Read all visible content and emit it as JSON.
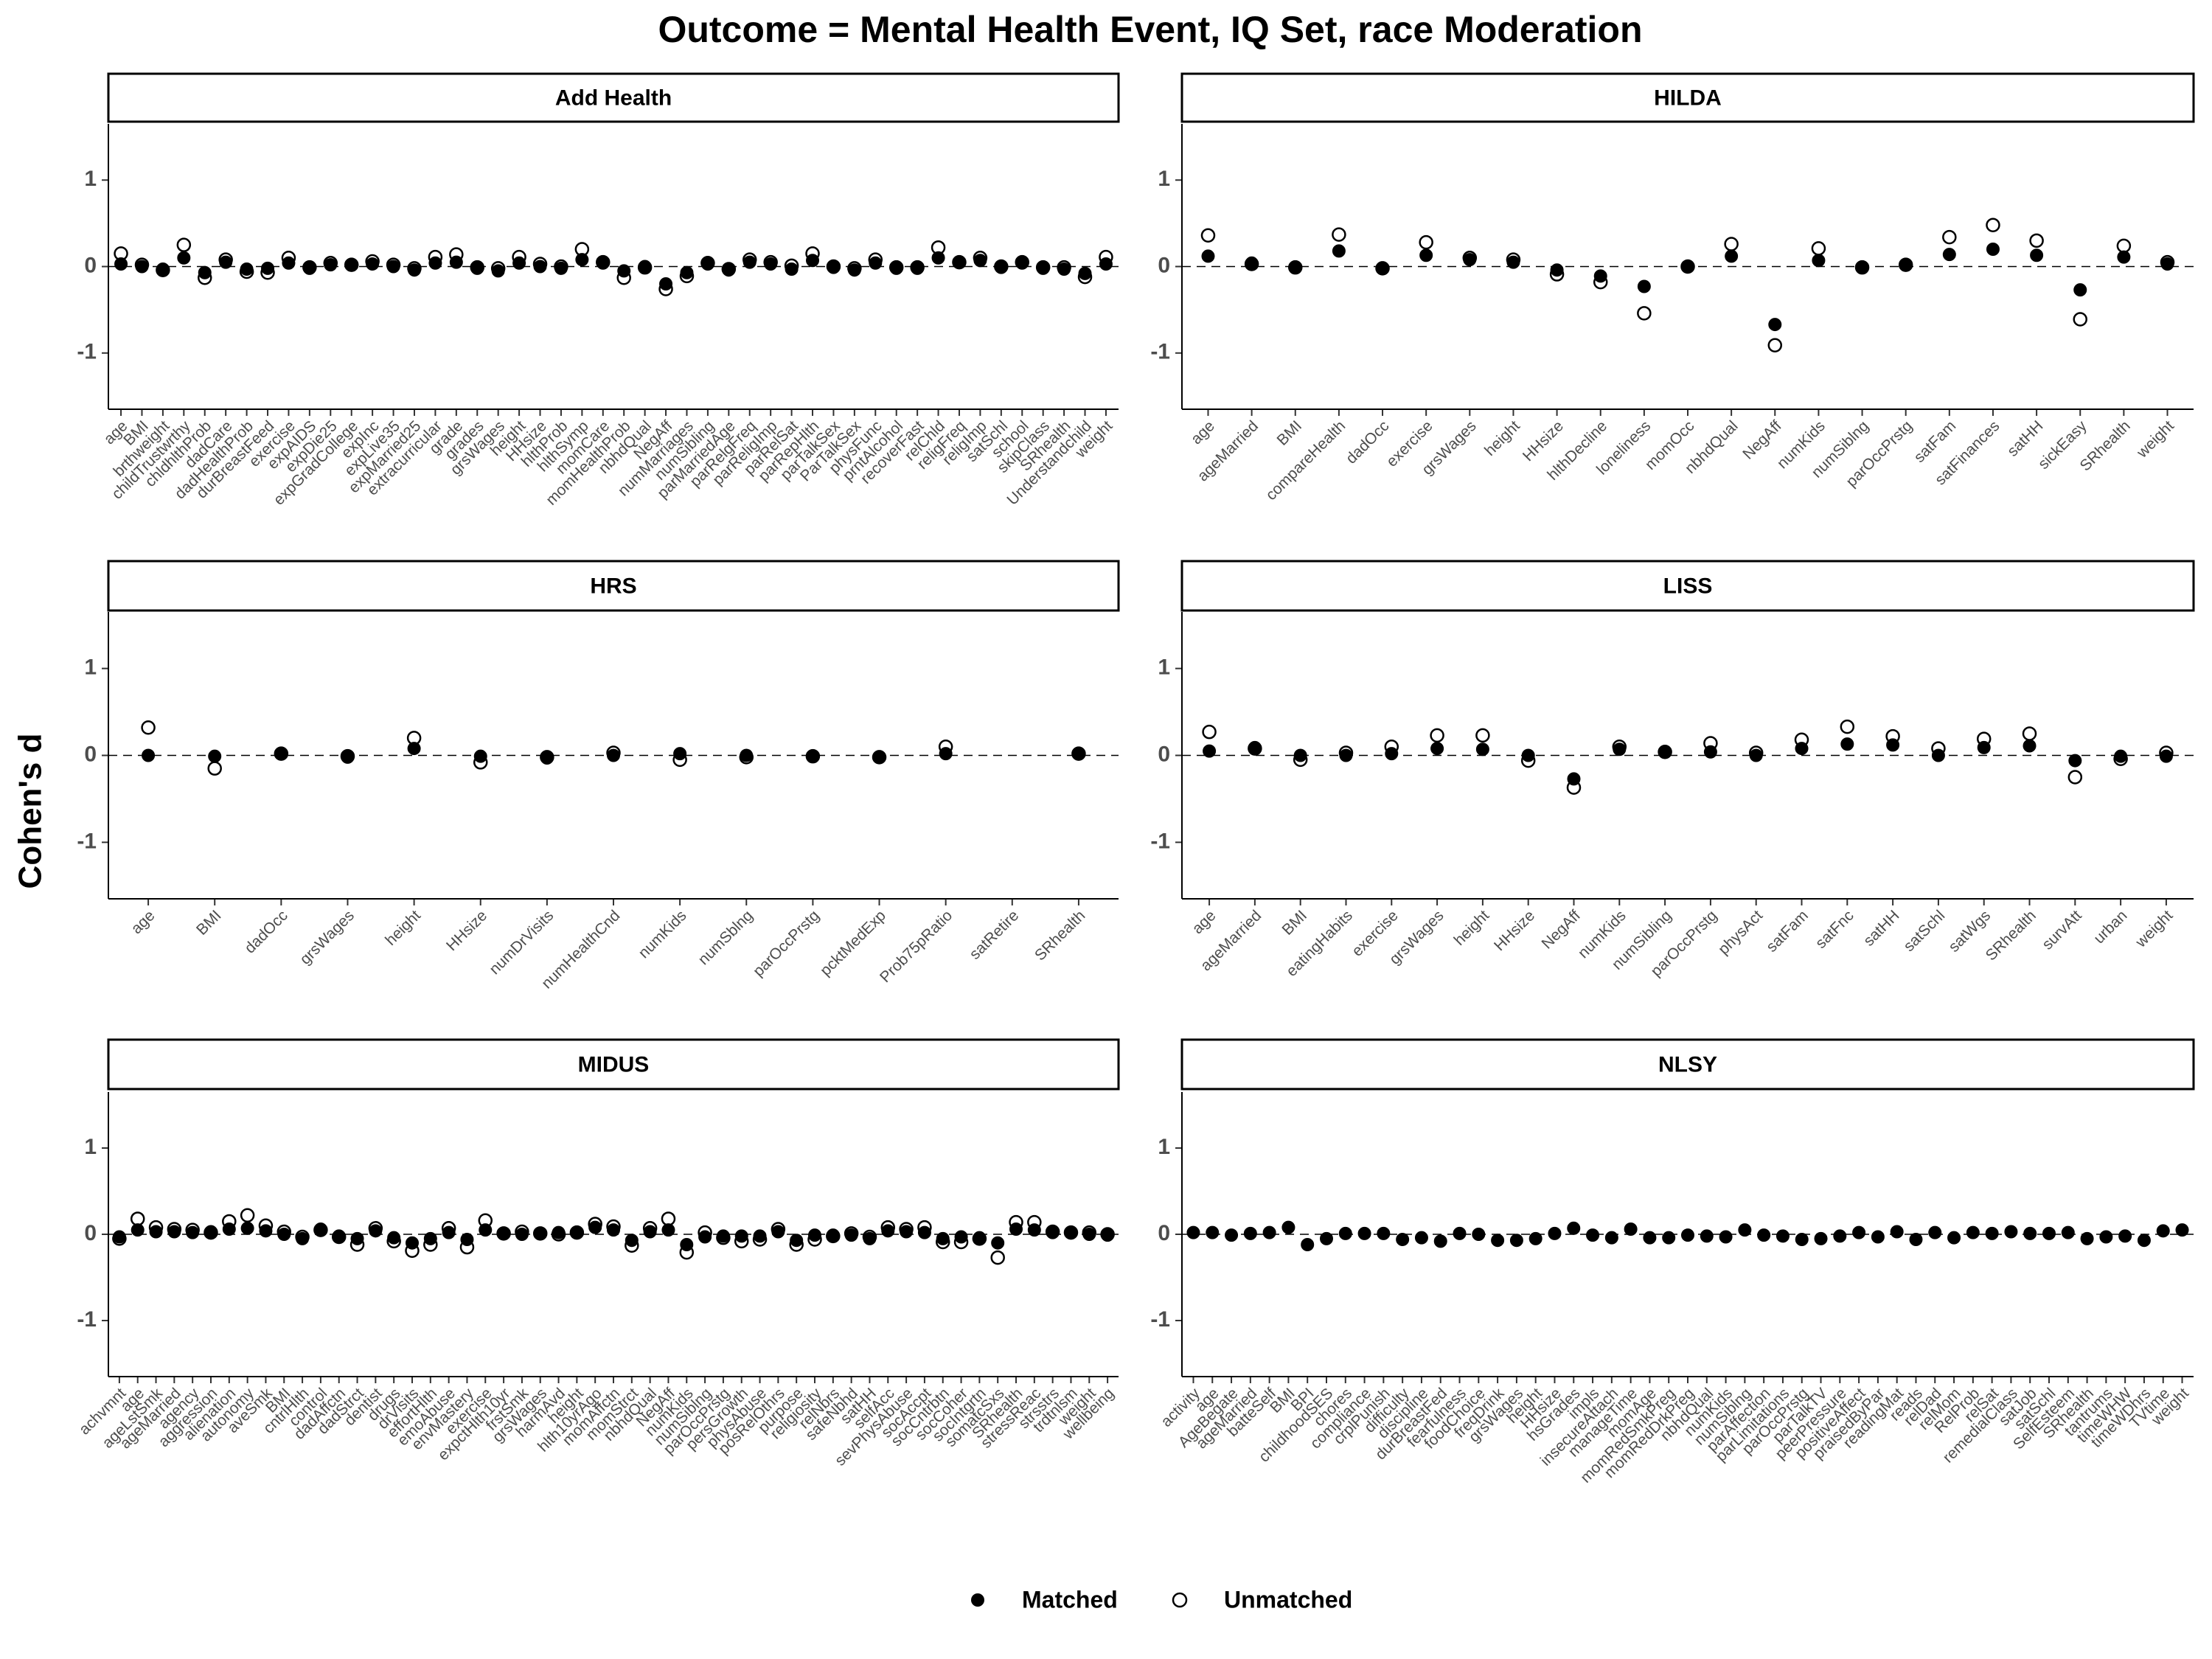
{
  "title": "Outcome = Mental Health Event, IQ Set, race Moderation",
  "y_label": "Cohen's d",
  "chart_data": [
    {
      "type": "dot",
      "title": "Add Health",
      "ylim": [
        -1.65,
        1.65
      ],
      "yticks": [
        -1,
        0,
        1
      ],
      "hline": 0,
      "categories": [
        "age",
        "BMI",
        "brthweight",
        "childTrustwrthy",
        "chldhlthProb",
        "dadCare",
        "dadHealthProb",
        "durBreastFeed",
        "exercise",
        "expAIDS",
        "expDie25",
        "expGradCollege",
        "expInc",
        "expLive35",
        "expMarried25",
        "extracurricular",
        "grade",
        "grades",
        "grsWages",
        "height",
        "HHsize",
        "hlthProb",
        "hlthSymp",
        "momCare",
        "momHealthProb",
        "nbhdQual",
        "NegAff",
        "numMarriages",
        "numSibling",
        "parMarriedAge",
        "parRelgFreq",
        "parReligImp",
        "parRelSat",
        "parRepHlth",
        "parTalkSex",
        "ParTalkSex",
        "physFunc",
        "prntAlcohol",
        "recoverFast",
        "relChld",
        "religFreq",
        "religImp",
        "satSchl",
        "school",
        "skipClass",
        "SRhealth",
        "Understandchild",
        "weight"
      ],
      "series": [
        {
          "name": "Matched",
          "color": "#000000",
          "marker": "filled",
          "values": [
            0.03,
            0,
            -0.03,
            0.1,
            -0.07,
            0.05,
            -0.03,
            -0.02,
            0.04,
            -0.02,
            0.02,
            0.02,
            0.03,
            0,
            -0.04,
            0.04,
            0.05,
            -0.02,
            -0.05,
            0.04,
            0,
            -0.02,
            0.08,
            0.04,
            -0.05,
            0,
            -0.2,
            -0.07,
            0.03,
            -0.04,
            0.05,
            0.03,
            -0.03,
            0.07,
            -0.01,
            -0.04,
            0.04,
            -0.02,
            -0.02,
            0.1,
            0.05,
            0.07,
            -0.01,
            0.04,
            -0.02,
            -0.03,
            -0.08,
            0.03
          ]
        },
        {
          "name": "Unmatched",
          "color": "#000000",
          "marker": "open",
          "values": [
            0.15,
            0.02,
            -0.04,
            0.25,
            -0.13,
            0.08,
            -0.06,
            -0.07,
            0.1,
            -0.01,
            0.04,
            0.02,
            0.06,
            0.02,
            -0.02,
            0.11,
            0.14,
            -0.01,
            -0.02,
            0.11,
            0.03,
            0,
            0.2,
            0.05,
            -0.13,
            -0.01,
            -0.26,
            -0.11,
            0.04,
            -0.03,
            0.08,
            0.05,
            0.01,
            0.15,
            0,
            -0.02,
            0.08,
            -0.01,
            -0.01,
            0.22,
            0.05,
            0.1,
            0,
            0.05,
            -0.01,
            -0.01,
            -0.12,
            0.11
          ]
        }
      ]
    },
    {
      "type": "dot",
      "title": "HILDA",
      "ylim": [
        -1.65,
        1.65
      ],
      "yticks": [
        -1,
        0,
        1
      ],
      "hline": 0,
      "categories": [
        "age",
        "ageMarried",
        "BMI",
        "compareHealth",
        "dadOcc",
        "exercise",
        "grsWages",
        "height",
        "HHsize",
        "hlthDecline",
        "loneliness",
        "momOcc",
        "nbhdQual",
        "NegAff",
        "numKids",
        "numSiblng",
        "parOccPrstg",
        "satFam",
        "satFinances",
        "satHH",
        "sickEasy",
        "SRhealth",
        "weight"
      ],
      "series": [
        {
          "name": "Matched",
          "color": "#000000",
          "marker": "filled",
          "values": [
            0.12,
            0.04,
            -0.01,
            0.18,
            -0.02,
            0.13,
            0.08,
            0.05,
            -0.04,
            -0.11,
            -0.23,
            0,
            0.12,
            -0.67,
            0.07,
            -0.01,
            0.02,
            0.14,
            0.2,
            0.13,
            -0.27,
            0.11,
            0.03
          ]
        },
        {
          "name": "Unmatched",
          "color": "#000000",
          "marker": "open",
          "values": [
            0.36,
            0.03,
            -0.01,
            0.37,
            -0.02,
            0.28,
            0.1,
            0.08,
            -0.09,
            -0.18,
            -0.54,
            0,
            0.26,
            -0.91,
            0.21,
            -0.01,
            0.02,
            0.34,
            0.48,
            0.3,
            -0.61,
            0.24,
            0.05
          ]
        }
      ]
    },
    {
      "type": "dot",
      "title": "HRS",
      "ylim": [
        -1.65,
        1.65
      ],
      "yticks": [
        -1,
        0,
        1
      ],
      "hline": 0,
      "categories": [
        "age",
        "BMI",
        "dadOcc",
        "grsWages",
        "height",
        "HHsize",
        "numDrVisits",
        "numHealthCnd",
        "numKids",
        "numSblng",
        "parOccPrstg",
        "pcktMedExp",
        "Prob75pRatio",
        "satRetire",
        "SRhealth"
      ],
      "series": [
        {
          "name": "Matched",
          "color": "#000000",
          "marker": "filled",
          "values": [
            0,
            -0.01,
            0.02,
            -0.02,
            0.08,
            -0.01,
            -0.03,
            0,
            0.02,
            0,
            -0.01,
            -0.02,
            0.02,
            null,
            0.02
          ]
        },
        {
          "name": "Unmatched",
          "color": "#000000",
          "marker": "open",
          "values": [
            0.32,
            -0.15,
            0.02,
            -0.01,
            0.2,
            -0.08,
            -0.02,
            0.03,
            -0.05,
            -0.02,
            -0.01,
            -0.02,
            0.1,
            null,
            0.02
          ]
        }
      ]
    },
    {
      "type": "dot",
      "title": "LISS",
      "ylim": [
        -1.65,
        1.65
      ],
      "yticks": [
        -1,
        0,
        1
      ],
      "hline": 0,
      "categories": [
        "age",
        "ageMarried",
        "BMI",
        "eatingHabits",
        "exercise",
        "grsWages",
        "height",
        "HHsize",
        "NegAff",
        "numKids",
        "numSibling",
        "parOccPrstg",
        "physAct",
        "satFam",
        "satFnc",
        "satHH",
        "satSchl",
        "satWgs",
        "SRhealth",
        "survAtt",
        "urban",
        "weight"
      ],
      "series": [
        {
          "name": "Matched",
          "color": "#000000",
          "marker": "filled",
          "values": [
            0.05,
            0.09,
            0,
            0,
            0.02,
            0.08,
            0.07,
            0,
            -0.27,
            0.07,
            0.04,
            0.04,
            0,
            0.08,
            0.13,
            0.12,
            0,
            0.09,
            0.11,
            -0.06,
            -0.01,
            -0.01
          ]
        },
        {
          "name": "Unmatched",
          "color": "#000000",
          "marker": "open",
          "values": [
            0.27,
            0.08,
            -0.05,
            0.03,
            0.1,
            0.23,
            0.23,
            -0.06,
            -0.37,
            0.1,
            0.04,
            0.14,
            0.03,
            0.18,
            0.33,
            0.22,
            0.08,
            0.19,
            0.25,
            -0.25,
            -0.04,
            0.03
          ]
        }
      ]
    },
    {
      "type": "dot",
      "title": "MIDUS",
      "ylim": [
        -1.65,
        1.65
      ],
      "yticks": [
        -1,
        0,
        1
      ],
      "hline": 0,
      "categories": [
        "achvmnt",
        "age",
        "ageLstSmk",
        "ageMarried",
        "agency",
        "aggression",
        "alienation",
        "autonomy",
        "aveSmk",
        "BMI",
        "cntrlHlth",
        "control",
        "dadAffctn",
        "dadStrct",
        "dentist",
        "drugs",
        "drVisits",
        "effortHlth",
        "emoAbuse",
        "envMastery",
        "exercise",
        "expctHlth10yr",
        "frstSmk",
        "grsWages",
        "harmAvd",
        "height",
        "hlth10yrAgo",
        "momAffctn",
        "momStrct",
        "nbhdQual",
        "NegAff",
        "numKids",
        "numSiblng",
        "parOccPrstg",
        "persGrowth",
        "physAbuse",
        "posRelOthrs",
        "purpose",
        "religiosity",
        "relNbrs",
        "safeNbhd",
        "satHH",
        "selfAcc",
        "sevPhysAbuse",
        "socAccpt",
        "socCntrbtn",
        "socCoher",
        "socIntgrtn",
        "somatcSxs",
        "SRhealth",
        "stressReac",
        "strsstrs",
        "trdtnlsm",
        "weight",
        "wellbeing"
      ],
      "series": [
        {
          "name": "Matched",
          "color": "#000000",
          "marker": "filled",
          "values": [
            -0.03,
            0.05,
            0.03,
            0.03,
            0.02,
            0.03,
            0.06,
            0.07,
            0.04,
            0,
            -0.05,
            0.06,
            -0.02,
            -0.05,
            0.04,
            -0.04,
            -0.1,
            -0.05,
            0.02,
            -0.06,
            0.05,
            0.01,
            0,
            0.01,
            0.02,
            0.02,
            0.08,
            0.05,
            -0.07,
            0.03,
            0.05,
            -0.12,
            -0.03,
            -0.02,
            -0.02,
            -0.02,
            0.03,
            -0.07,
            -0.01,
            -0.01,
            -0.01,
            -0.05,
            0.04,
            0.03,
            0.02,
            -0.05,
            -0.03,
            -0.04,
            -0.1,
            0.06,
            0.05,
            0.02,
            0.02,
            0,
            -0.01
          ]
        },
        {
          "name": "Unmatched",
          "color": "#000000",
          "marker": "open",
          "values": [
            -0.05,
            0.18,
            0.08,
            0.06,
            0.05,
            0.02,
            0.15,
            0.22,
            0.1,
            0.03,
            -0.03,
            0.05,
            -0.03,
            -0.12,
            0.07,
            -0.08,
            -0.19,
            -0.12,
            0.07,
            -0.15,
            0.16,
            0.01,
            0.03,
            0.01,
            0,
            0.02,
            0.12,
            0.09,
            -0.13,
            0.07,
            0.18,
            -0.21,
            0.02,
            -0.04,
            -0.08,
            -0.06,
            0.06,
            -0.12,
            -0.06,
            -0.02,
            0.01,
            -0.03,
            0.08,
            0.06,
            0.08,
            -0.09,
            -0.09,
            -0.05,
            -0.27,
            0.14,
            0.14,
            0.03,
            0.02,
            0.02,
            0
          ]
        }
      ]
    },
    {
      "type": "dot",
      "title": "NLSY",
      "ylim": [
        -1.65,
        1.65
      ],
      "yticks": [
        -1,
        0,
        1
      ],
      "hline": 0,
      "categories": [
        "activity",
        "age",
        "AgeBegate",
        "ageMarried",
        "batteSelf",
        "BMI",
        "BPI",
        "childhoodSES",
        "chores",
        "compliance",
        "crplPunish",
        "difficulty",
        "discipline",
        "durBreastFed",
        "fearfulness",
        "foodChoice",
        "freqDrink",
        "grsWages",
        "height",
        "HHsize",
        "hsGrades",
        "impls",
        "insecureAttach",
        "manageTime",
        "momAge",
        "momRedSmkPreg",
        "momRedDrkPreg",
        "nbhdQual",
        "numKids",
        "numSiblng",
        "parAffection",
        "parLimitations",
        "parOccPrstg",
        "parTalkTV",
        "peerPressure",
        "positiveAffect",
        "praisedByPar",
        "readingMat",
        "reads",
        "relDad",
        "relMom",
        "RelProb",
        "relSat",
        "remedialClass",
        "satJob",
        "satSchl",
        "SelfEsteem",
        "SRhealth",
        "tantrums",
        "timeWHW",
        "timeWDhrs",
        "TVtime",
        "weight"
      ],
      "series": [
        {
          "name": "Matched",
          "color": "#000000",
          "marker": "filled",
          "values": [
            0.02,
            0.02,
            -0.01,
            0.01,
            0.02,
            0.08,
            -0.12,
            -0.05,
            0.01,
            0.01,
            0.01,
            -0.06,
            -0.04,
            -0.08,
            0.01,
            0,
            -0.07,
            -0.07,
            -0.05,
            0.01,
            0.07,
            -0.01,
            -0.04,
            0.06,
            -0.04,
            -0.04,
            -0.01,
            -0.02,
            -0.03,
            0.05,
            -0.01,
            -0.02,
            -0.06,
            -0.05,
            -0.02,
            0.02,
            -0.03,
            0.03,
            -0.06,
            0.02,
            -0.04,
            0.02,
            0.01,
            0.03,
            0.01,
            0.01,
            0.02,
            -0.05,
            -0.03,
            -0.02,
            -0.07,
            0.04,
            0.05
          ]
        }
      ]
    }
  ]
}
